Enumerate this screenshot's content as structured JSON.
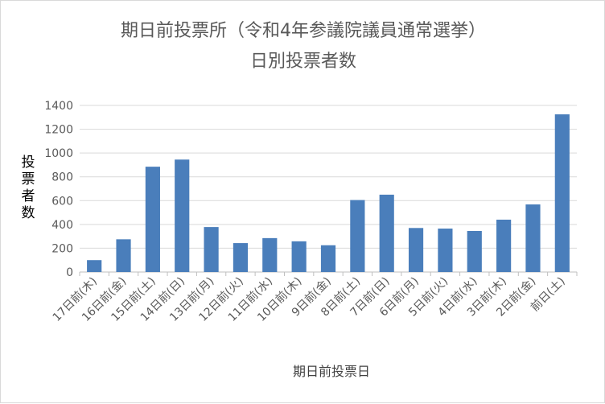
{
  "chart_data": {
    "type": "bar",
    "title_line1": "期日前投票所（令和4年参議院議員通常選挙）",
    "title_line2": "日別投票者数",
    "xlabel": "期日前投票日",
    "ylabel": "投票者数",
    "ylim": [
      0,
      1400
    ],
    "yticks": [
      "0",
      "200",
      "400",
      "600",
      "800",
      "1000",
      "1200",
      "1400"
    ],
    "grid": true,
    "legend": "none",
    "color": "#4a7ebb",
    "categories": [
      "17日前(木)",
      "16日前(金)",
      "15日前(土)",
      "14日前(日)",
      "13日前(月)",
      "12日前(火)",
      "11日前(水)",
      "10日前(木)",
      "9日前(金)",
      "8日前(土)",
      "7日前(日)",
      "6日前(月)",
      "5日前(火)",
      "4日前(水)",
      "3日前(木)",
      "2日前(金)",
      "前日(土)"
    ],
    "values": [
      100,
      275,
      885,
      945,
      378,
      243,
      285,
      258,
      225,
      605,
      650,
      370,
      365,
      345,
      440,
      568,
      1325
    ]
  }
}
